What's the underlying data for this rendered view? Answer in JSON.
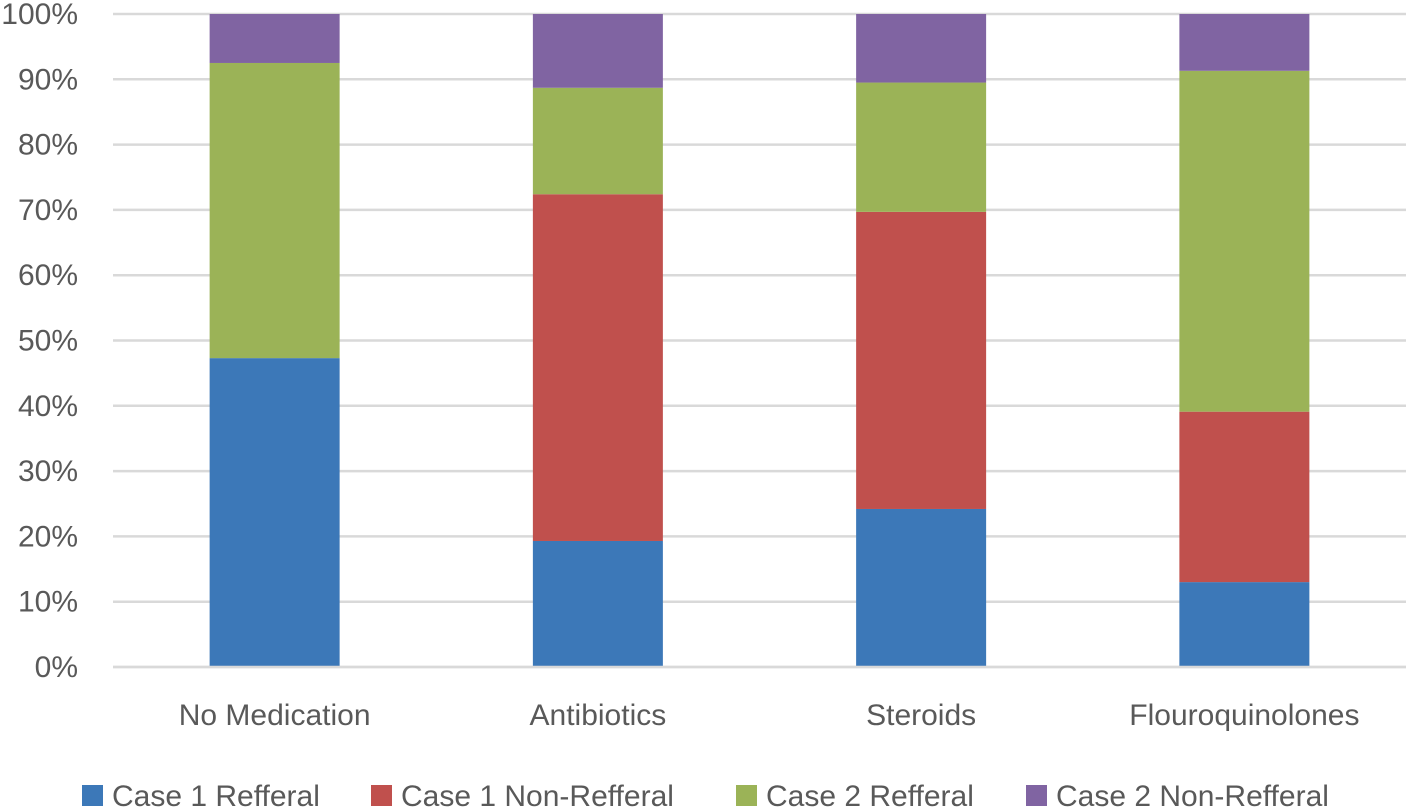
{
  "chart_data": {
    "type": "bar",
    "stacked": true,
    "percent": true,
    "title": "",
    "xlabel": "",
    "ylabel": "",
    "ylim": [
      0,
      100
    ],
    "yticks": [
      "0%",
      "10%",
      "20%",
      "30%",
      "40%",
      "50%",
      "60%",
      "70%",
      "80%",
      "90%",
      "100%"
    ],
    "grid": true,
    "legend_position": "bottom",
    "categories": [
      "No Medication",
      "Antibiotics",
      "Steroids",
      "Flouroquinolones"
    ],
    "series": [
      {
        "name": "Case 1 Refferal",
        "color": "#3c78b8",
        "values": [
          47.3,
          19.3,
          24.2,
          13.0
        ]
      },
      {
        "name": "Case 1 Non-Refferal",
        "color": "#c0504d",
        "values": [
          0.0,
          53.1,
          45.5,
          26.1
        ]
      },
      {
        "name": "Case 2 Refferal",
        "color": "#9bb357",
        "values": [
          45.2,
          16.3,
          19.8,
          52.2
        ]
      },
      {
        "name": "Case 2 Non-Refferal",
        "color": "#8064a2",
        "values": [
          7.5,
          11.3,
          10.5,
          8.7
        ]
      }
    ]
  }
}
